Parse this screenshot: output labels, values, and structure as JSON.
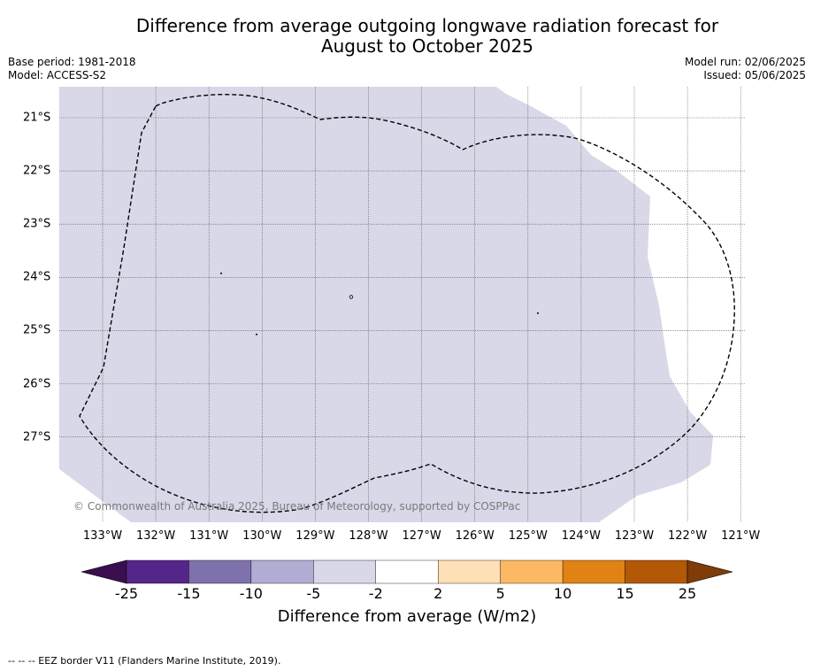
{
  "title_line1": "Difference from average outgoing longwave radiation forecast for",
  "title_line2": "August to October 2025",
  "base_period": "Base period: 1981-2018",
  "model": "Model: ACCESS-S2",
  "model_run": "Model run: 02/06/2025",
  "issued": "Issued: 05/06/2025",
  "copyright": "© Commonwealth of Australia 2025, Bureau of Meteorology, supported by COSPPac",
  "eez_legend": "-- -- -- EEZ border V11 (Flanders Marine Institute, 2019).",
  "latitude_labels": [
    "21°S",
    "22°S",
    "23°S",
    "24°S",
    "25°S",
    "26°S",
    "27°S"
  ],
  "longitude_labels": [
    "133°W",
    "132°W",
    "131°W",
    "130°W",
    "129°W",
    "128°W",
    "127°W",
    "126°W",
    "125°W",
    "124°W",
    "123°W",
    "122°W",
    "121°W"
  ],
  "colorbar": {
    "title": "Difference from average (W/m2)",
    "tick_labels": [
      "-25",
      "-15",
      "-10",
      "-5",
      "-2",
      "2",
      "5",
      "10",
      "15",
      "25"
    ],
    "colors": [
      "#3b0f4f",
      "#55268a",
      "#7f72ac",
      "#b1acd3",
      "#d8d8e9",
      "#ffffff",
      "#fee0b6",
      "#fdb863",
      "#e08214",
      "#b35806",
      "#7f3b08"
    ]
  },
  "map": {
    "field_color": "#d8d8e9",
    "field_category": "-5 to -2",
    "eez_line": "dashed black"
  }
}
